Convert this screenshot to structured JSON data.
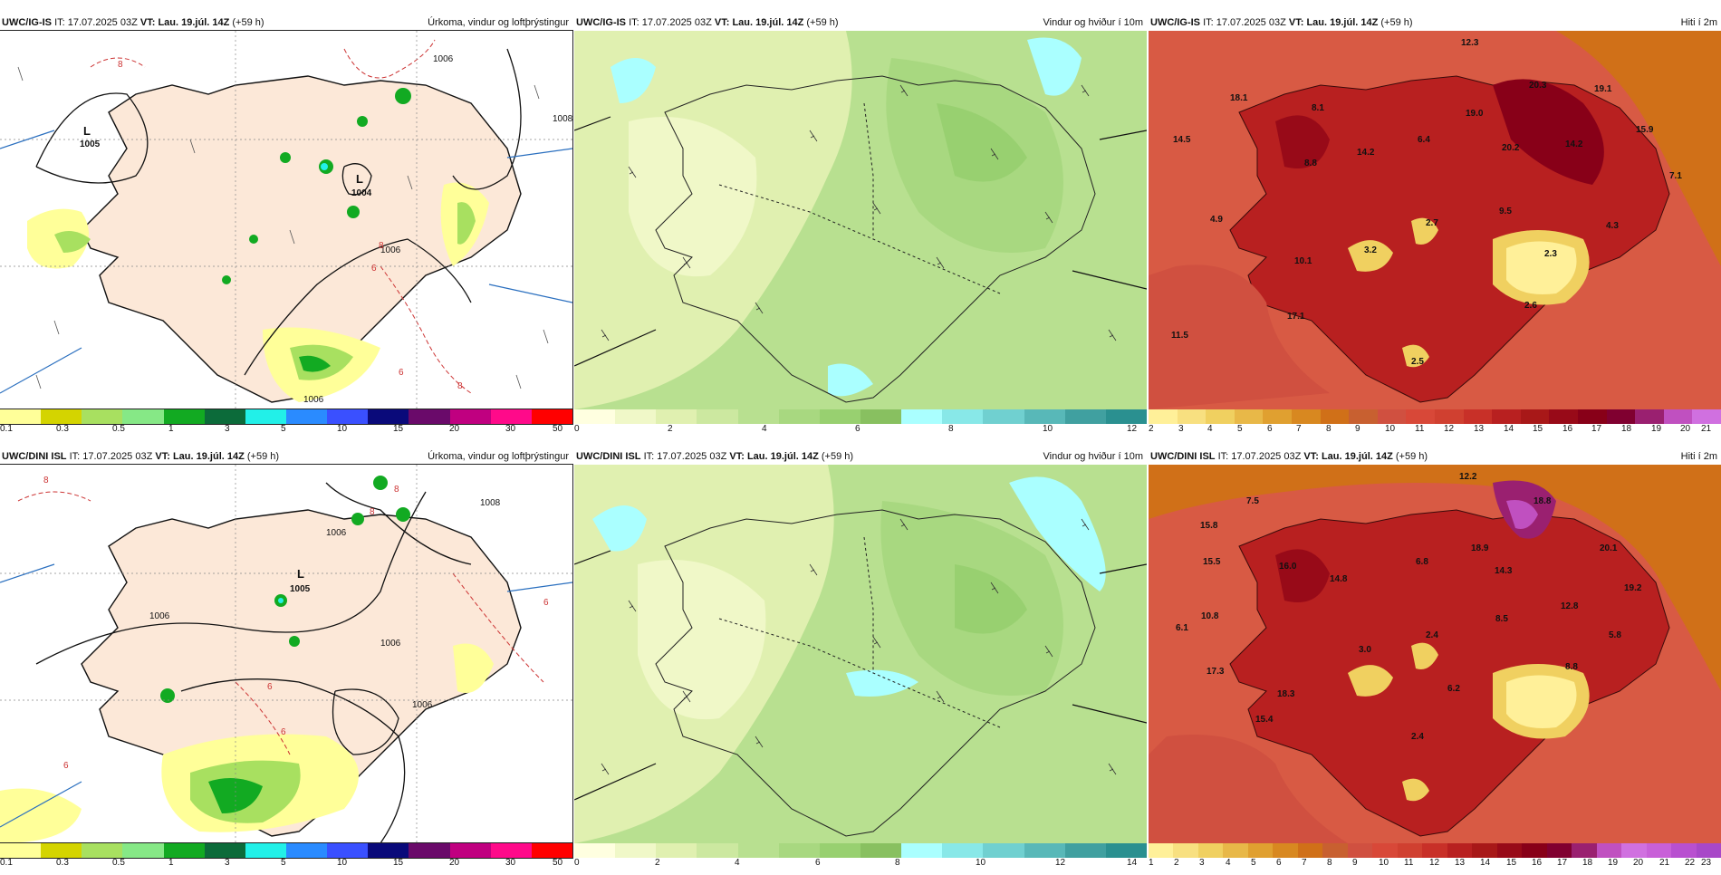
{
  "rows": [
    {
      "model": "UWC/IG-IS",
      "it_label": "IT:",
      "it": "17.07.2025 03Z",
      "vt_label": "VT:",
      "vt": "Lau. 19.júl. 14Z",
      "lead": "(+59 h)",
      "panels": [
        {
          "title": "Úrkoma, vindur og loftþrýstingur",
          "colorbar": {
            "colors": [
              "#ffff99",
              "#d4d400",
              "#a8e060",
              "#86e886",
              "#12aa22",
              "#0c6b3a",
              "#22f0e8",
              "#2a8bff",
              "#3a50ff",
              "#0a0a7a",
              "#6a0a6a",
              "#c00080",
              "#ff0a8a",
              "#ff0000"
            ],
            "ticks": [
              "0.1",
              "0.3",
              "0.5",
              "1",
              "3",
              "5",
              "10",
              "15",
              "20",
              "30",
              "50"
            ]
          },
          "labels": [
            {
              "text": "L",
              "kind": "low"
            },
            {
              "text": "1005"
            },
            {
              "text": "L",
              "kind": "low"
            },
            {
              "text": "1004"
            },
            {
              "text": "1006"
            },
            {
              "text": "1006"
            },
            {
              "text": "1008"
            },
            {
              "text": "1006"
            },
            {
              "text": "8"
            },
            {
              "text": "8"
            },
            {
              "text": "6"
            },
            {
              "text": "8"
            },
            {
              "text": "6"
            }
          ]
        },
        {
          "title": "Vindur og hviður í 10m",
          "colorbar": {
            "colors": [
              "#ffffe0",
              "#f0f8c8",
              "#e0f0b0",
              "#cce8a0",
              "#b8e090",
              "#a8d880",
              "#98d070",
              "#88c060",
              "#aaffff",
              "#88e8e8",
              "#70d0d0",
              "#58b8b8",
              "#40a0a0",
              "#2a9090"
            ],
            "ticks": [
              "0",
              "2",
              "4",
              "6",
              "8",
              "10",
              "12"
            ]
          },
          "labels": []
        },
        {
          "title": "Hiti í 2m",
          "colorbar": {
            "colors": [
              "#fff099",
              "#f8e080",
              "#f0d060",
              "#e8b848",
              "#e0a030",
              "#d88820",
              "#d07018",
              "#c86030",
              "#d05040",
              "#d84838",
              "#d04030",
              "#c83028",
              "#b82020",
              "#a81818",
              "#980a18",
              "#880018",
              "#800030",
              "#9a2070",
              "#c050c0",
              "#d070e0"
            ],
            "ticks": [
              "2",
              "3",
              "4",
              "5",
              "6",
              "7",
              "8",
              "9",
              "10",
              "11",
              "12",
              "13",
              "14",
              "15",
              "16",
              "17",
              "18",
              "19",
              "20",
              "21"
            ]
          },
          "labels": [
            {
              "text": "12.3"
            },
            {
              "text": "18.1"
            },
            {
              "text": "8.1"
            },
            {
              "text": "20.3"
            },
            {
              "text": "19.1"
            },
            {
              "text": "14.5"
            },
            {
              "text": "19.0"
            },
            {
              "text": "6.4"
            },
            {
              "text": "14.2"
            },
            {
              "text": "20.2"
            },
            {
              "text": "14.2"
            },
            {
              "text": "15.9"
            },
            {
              "text": "8.8"
            },
            {
              "text": "7.1"
            },
            {
              "text": "9.5"
            },
            {
              "text": "4.9"
            },
            {
              "text": "2.7"
            },
            {
              "text": "4.3"
            },
            {
              "text": "3.2"
            },
            {
              "text": "2.3"
            },
            {
              "text": "10.1"
            },
            {
              "text": "2.6"
            },
            {
              "text": "17.1"
            },
            {
              "text": "11.5"
            },
            {
              "text": "2.5"
            }
          ]
        }
      ]
    },
    {
      "model": "UWC/DINI ISL",
      "it_label": "IT:",
      "it": "17.07.2025 03Z",
      "vt_label": "VT:",
      "vt": "Lau. 19.júl. 14Z",
      "lead": "(+59 h)",
      "panels": [
        {
          "title": "Úrkoma, vindur og loftþrýstingur",
          "colorbar": {
            "colors": [
              "#ffff99",
              "#d4d400",
              "#a8e060",
              "#86e886",
              "#12aa22",
              "#0c6b3a",
              "#22f0e8",
              "#2a8bff",
              "#3a50ff",
              "#0a0a7a",
              "#6a0a6a",
              "#c00080",
              "#ff0a8a",
              "#ff0000"
            ],
            "ticks": [
              "0.1",
              "0.3",
              "0.5",
              "1",
              "3",
              "5",
              "10",
              "15",
              "20",
              "30",
              "50"
            ]
          },
          "labels": [
            {
              "text": "L",
              "kind": "low"
            },
            {
              "text": "1005"
            },
            {
              "text": "1006"
            },
            {
              "text": "1006"
            },
            {
              "text": "1006"
            },
            {
              "text": "1008"
            },
            {
              "text": "1006"
            },
            {
              "text": "8"
            },
            {
              "text": "8"
            },
            {
              "text": "8"
            },
            {
              "text": "6"
            },
            {
              "text": "6"
            },
            {
              "text": "6"
            },
            {
              "text": "6"
            }
          ]
        },
        {
          "title": "Vindur og hviður í 10m",
          "colorbar": {
            "colors": [
              "#ffffe0",
              "#f0f8c8",
              "#e0f0b0",
              "#cce8a0",
              "#b8e090",
              "#a8d880",
              "#98d070",
              "#88c060",
              "#aaffff",
              "#88e8e8",
              "#70d0d0",
              "#58b8b8",
              "#40a0a0",
              "#2a9090"
            ],
            "ticks": [
              "0",
              "2",
              "4",
              "6",
              "8",
              "10",
              "12",
              "14"
            ]
          },
          "labels": []
        },
        {
          "title": "Hiti í 2m",
          "colorbar": {
            "colors": [
              "#fff099",
              "#f8e080",
              "#f0d060",
              "#e8b848",
              "#e0a030",
              "#d88820",
              "#d07018",
              "#c86030",
              "#d05040",
              "#d84838",
              "#d04030",
              "#c83028",
              "#b82020",
              "#a81818",
              "#980a18",
              "#880018",
              "#800030",
              "#9a2070",
              "#c050c0",
              "#d070e0",
              "#c860d8",
              "#b850d0",
              "#a848c8"
            ],
            "ticks": [
              "1",
              "2",
              "3",
              "4",
              "5",
              "6",
              "7",
              "8",
              "9",
              "10",
              "11",
              "12",
              "13",
              "14",
              "15",
              "16",
              "17",
              "18",
              "19",
              "20",
              "21",
              "22",
              "23"
            ]
          },
          "labels": [
            {
              "text": "12.2"
            },
            {
              "text": "7.5"
            },
            {
              "text": "18.8"
            },
            {
              "text": "15.8"
            },
            {
              "text": "15.5"
            },
            {
              "text": "16.0"
            },
            {
              "text": "6.8"
            },
            {
              "text": "18.9"
            },
            {
              "text": "20.1"
            },
            {
              "text": "14.8"
            },
            {
              "text": "14.3"
            },
            {
              "text": "19.2"
            },
            {
              "text": "10.8"
            },
            {
              "text": "12.8"
            },
            {
              "text": "6.1"
            },
            {
              "text": "8.5"
            },
            {
              "text": "2.4"
            },
            {
              "text": "5.8"
            },
            {
              "text": "3.0"
            },
            {
              "text": "8.8"
            },
            {
              "text": "17.3"
            },
            {
              "text": "6.2"
            },
            {
              "text": "18.3"
            },
            {
              "text": "15.4"
            },
            {
              "text": "2.4"
            }
          ]
        }
      ]
    }
  ]
}
